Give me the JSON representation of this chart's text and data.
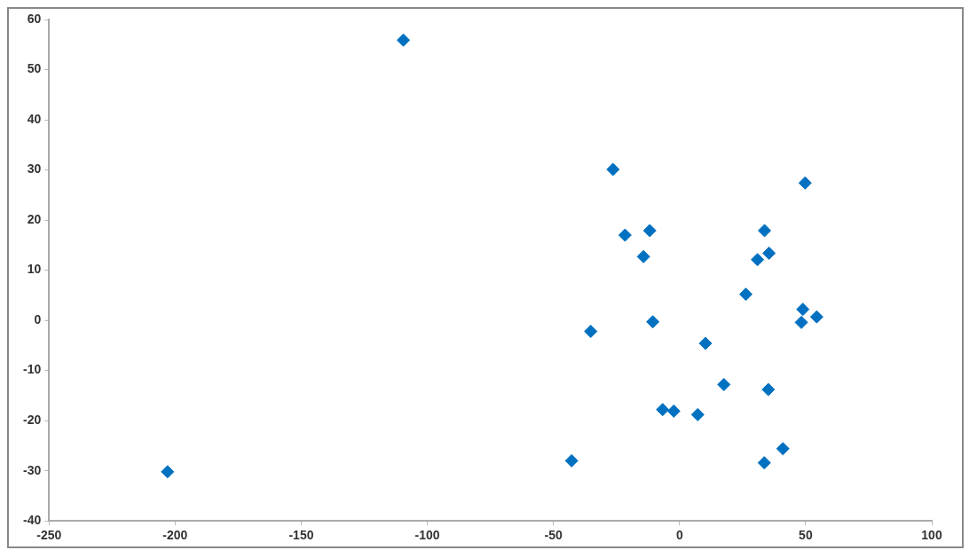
{
  "chart_data": {
    "type": "scatter",
    "marker": "diamond",
    "grid": false,
    "xlim": [
      -250,
      100
    ],
    "xticks": [
      -250,
      -200,
      -150,
      -100,
      -50,
      0,
      50,
      100
    ],
    "ylim": [
      -40,
      60
    ],
    "yticks": [
      -40,
      -30,
      -20,
      -10,
      0,
      10,
      20,
      30,
      40,
      50,
      60
    ],
    "series": [
      {
        "color": "#0070c0",
        "x": [
          -109.5,
          -203,
          -26.4,
          49.8,
          -21.6,
          -11.8,
          33.7,
          -14.3,
          35.5,
          30.9,
          26.3,
          48.9,
          54.4,
          48.3,
          -35.2,
          -10.6,
          10.3,
          17.6,
          35.2,
          -6.7,
          -2.3,
          7.2,
          41.0,
          -42.8,
          33.6
        ],
        "values": [
          55.9,
          -30.2,
          30.1,
          27.4,
          17.0,
          17.9,
          17.9,
          12.7,
          13.4,
          12.1,
          5.2,
          2.2,
          0.7,
          -0.4,
          -2.2,
          -0.3,
          -4.6,
          -12.8,
          -13.8,
          -17.8,
          -18.1,
          -18.8,
          -25.6,
          -28.0,
          -28.4
        ]
      }
    ]
  }
}
